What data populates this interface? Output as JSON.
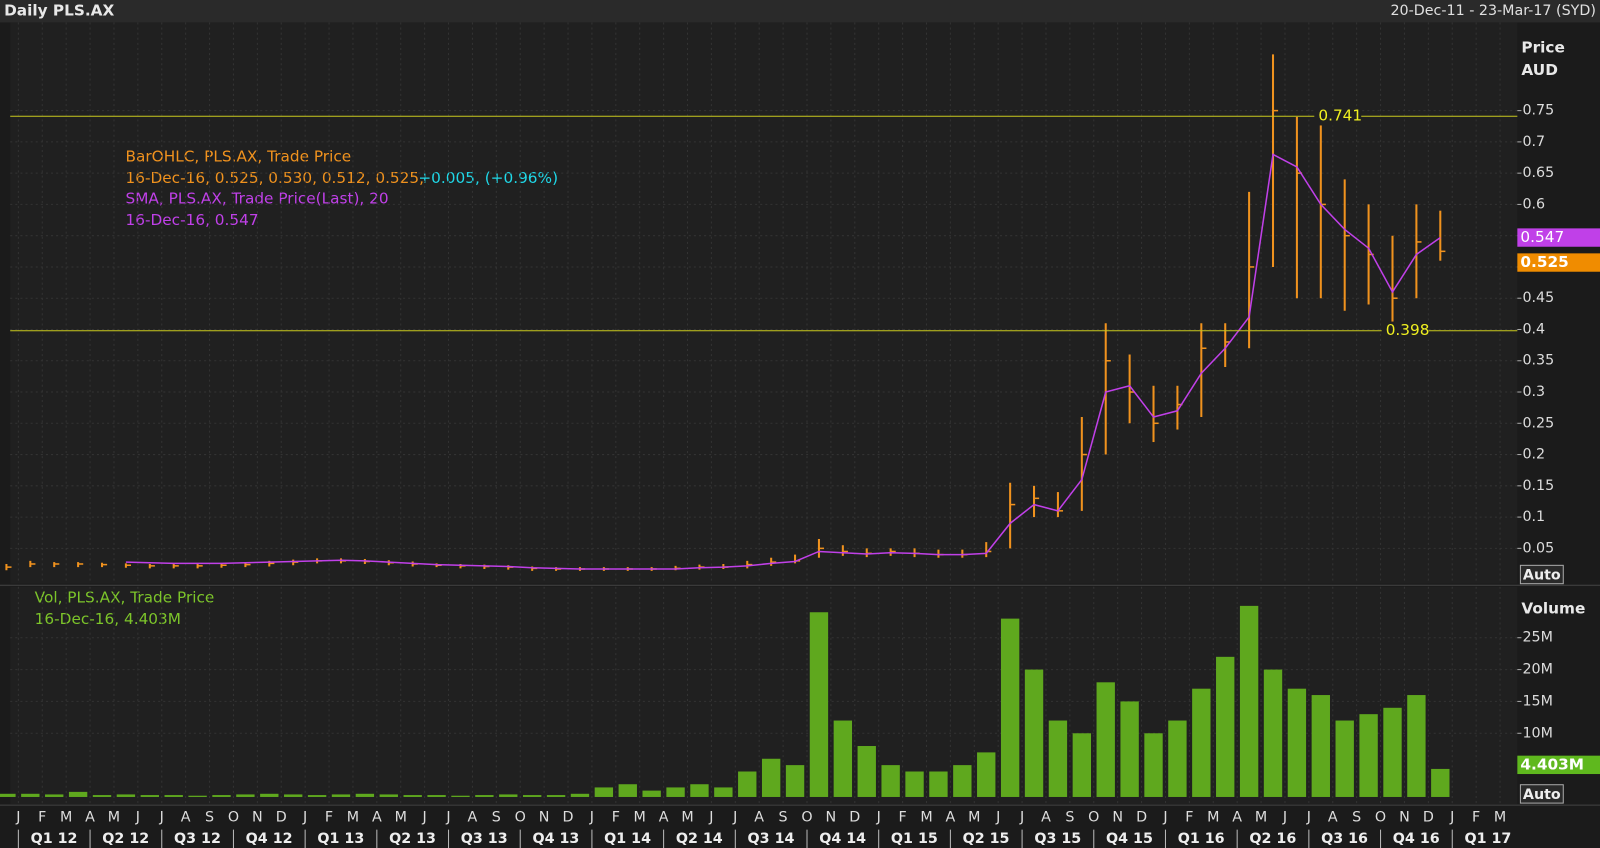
{
  "header": {
    "title": "Daily PLS.AX",
    "range": "20-Dec-11 - 23-Mar-17 (SYD)",
    "auto": "Auto"
  },
  "time_axis": {
    "months": [
      "J",
      "F",
      "M",
      "A",
      "M",
      "J",
      "J",
      "A",
      "S",
      "O",
      "N",
      "D",
      "J",
      "F",
      "M",
      "A",
      "M",
      "J",
      "J",
      "A",
      "S",
      "O",
      "N",
      "D",
      "J",
      "F",
      "M",
      "A",
      "M",
      "J",
      "J",
      "A",
      "S",
      "O",
      "N",
      "D",
      "J",
      "F",
      "M",
      "A",
      "M",
      "J",
      "J",
      "A",
      "S",
      "O",
      "N",
      "D",
      "J",
      "F",
      "M",
      "A",
      "M",
      "J",
      "J",
      "A",
      "S",
      "O",
      "N",
      "D",
      "J",
      "F",
      "M"
    ],
    "quarters": [
      "Q1 12",
      "Q2 12",
      "Q3 12",
      "Q4 12",
      "Q1 13",
      "Q2 13",
      "Q3 13",
      "Q4 13",
      "Q1 14",
      "Q2 14",
      "Q3 14",
      "Q4 14",
      "Q1 15",
      "Q2 15",
      "Q3 15",
      "Q4 15",
      "Q1 16",
      "Q2 16",
      "Q3 16",
      "Q4 16",
      "Q1 17"
    ]
  },
  "chart_data": [
    {
      "type": "ohlc",
      "y_title": "Price",
      "y_unit": "AUD",
      "ylim": [
        0,
        0.891
      ],
      "yticks": [
        0.05,
        0.1,
        0.15,
        0.2,
        0.25,
        0.3,
        0.35,
        0.4,
        0.45,
        0.5,
        0.55,
        0.6,
        0.65,
        0.7,
        0.75
      ],
      "hlines": [
        0.741,
        0.398
      ],
      "grid": true,
      "legend": {
        "ohlc_line": "16-Dec-16, 0.525, 0.530, 0.512, 0.525,",
        "ohlc_change": "+0.005, (+0.96%)",
        "sma_line": "16-Dec-16, 0.547"
      },
      "series": [
        {
          "name": "BarOHLC, PLS.AX, Trade Price",
          "color": "#f0921e",
          "high": [
            0.025,
            0.03,
            0.028,
            0.028,
            0.027,
            0.026,
            0.025,
            0.025,
            0.025,
            0.026,
            0.028,
            0.03,
            0.032,
            0.034,
            0.034,
            0.033,
            0.031,
            0.029,
            0.026,
            0.025,
            0.024,
            0.023,
            0.021,
            0.02,
            0.02,
            0.02,
            0.02,
            0.02,
            0.022,
            0.024,
            0.025,
            0.03,
            0.035,
            0.04,
            0.065,
            0.055,
            0.05,
            0.05,
            0.05,
            0.048,
            0.048,
            0.06,
            0.155,
            0.15,
            0.14,
            0.26,
            0.41,
            0.36,
            0.31,
            0.31,
            0.41,
            0.41,
            0.62,
            0.84,
            0.74,
            0.74,
            0.64,
            0.6,
            0.55,
            0.6,
            0.59
          ],
          "low": [
            0.015,
            0.02,
            0.02,
            0.02,
            0.02,
            0.019,
            0.018,
            0.018,
            0.018,
            0.019,
            0.02,
            0.021,
            0.023,
            0.026,
            0.026,
            0.025,
            0.023,
            0.021,
            0.02,
            0.018,
            0.017,
            0.016,
            0.014,
            0.014,
            0.014,
            0.014,
            0.014,
            0.014,
            0.015,
            0.016,
            0.017,
            0.018,
            0.022,
            0.026,
            0.035,
            0.038,
            0.036,
            0.038,
            0.036,
            0.035,
            0.035,
            0.036,
            0.05,
            0.1,
            0.1,
            0.11,
            0.2,
            0.25,
            0.22,
            0.24,
            0.26,
            0.34,
            0.37,
            0.5,
            0.45,
            0.45,
            0.43,
            0.44,
            0.41,
            0.45,
            0.51
          ],
          "close": [
            0.02,
            0.025,
            0.025,
            0.025,
            0.024,
            0.023,
            0.022,
            0.022,
            0.022,
            0.023,
            0.024,
            0.026,
            0.028,
            0.03,
            0.03,
            0.029,
            0.027,
            0.025,
            0.023,
            0.022,
            0.021,
            0.02,
            0.018,
            0.017,
            0.017,
            0.017,
            0.017,
            0.017,
            0.018,
            0.02,
            0.02,
            0.024,
            0.028,
            0.03,
            0.05,
            0.045,
            0.042,
            0.045,
            0.042,
            0.04,
            0.04,
            0.045,
            0.12,
            0.13,
            0.11,
            0.2,
            0.35,
            0.3,
            0.25,
            0.28,
            0.37,
            0.38,
            0.5,
            0.75,
            0.65,
            0.6,
            0.55,
            0.52,
            0.45,
            0.54,
            0.525
          ]
        },
        {
          "name": "SMA, PLS.AX, Trade Price(Last),  20",
          "color": "#c040e8",
          "values": [
            null,
            null,
            null,
            null,
            null,
            0.028,
            0.027,
            0.026,
            0.026,
            0.026,
            0.027,
            0.028,
            0.029,
            0.03,
            0.031,
            0.03,
            0.028,
            0.026,
            0.024,
            0.023,
            0.022,
            0.021,
            0.019,
            0.018,
            0.017,
            0.017,
            0.017,
            0.017,
            0.017,
            0.019,
            0.02,
            0.022,
            0.026,
            0.029,
            0.045,
            0.043,
            0.041,
            0.043,
            0.042,
            0.04,
            0.04,
            0.042,
            0.09,
            0.12,
            0.11,
            0.16,
            0.3,
            0.31,
            0.26,
            0.27,
            0.33,
            0.37,
            0.42,
            0.68,
            0.66,
            0.6,
            0.56,
            0.53,
            0.46,
            0.52,
            0.547
          ]
        }
      ]
    },
    {
      "type": "bar",
      "y_title": "Volume",
      "ylim": [
        0,
        33
      ],
      "yticks": [
        {
          "value": 10,
          "label": "10M"
        },
        {
          "value": 15,
          "label": "15M"
        },
        {
          "value": 20,
          "label": "20M"
        },
        {
          "value": 25,
          "label": "25M"
        }
      ],
      "grid": true,
      "legend": {
        "line": "16-Dec-16, 4.403M"
      },
      "last_value_label": "4.403M",
      "series": [
        {
          "name": "Vol, PLS.AX, Trade Price",
          "color": "#5fa81e",
          "values": [
            0.5,
            0.5,
            0.4,
            0.8,
            0.3,
            0.4,
            0.3,
            0.3,
            0.2,
            0.3,
            0.4,
            0.5,
            0.4,
            0.3,
            0.4,
            0.5,
            0.4,
            0.3,
            0.3,
            0.2,
            0.3,
            0.4,
            0.3,
            0.3,
            0.5,
            1.5,
            2,
            1,
            1.5,
            2,
            1.5,
            4,
            6,
            5,
            29,
            12,
            8,
            5,
            4,
            4,
            5,
            7,
            28,
            20,
            12,
            10,
            18,
            15,
            10,
            12,
            17,
            22,
            30,
            20,
            17,
            16,
            12,
            13,
            14,
            16,
            4.403
          ]
        }
      ]
    }
  ]
}
